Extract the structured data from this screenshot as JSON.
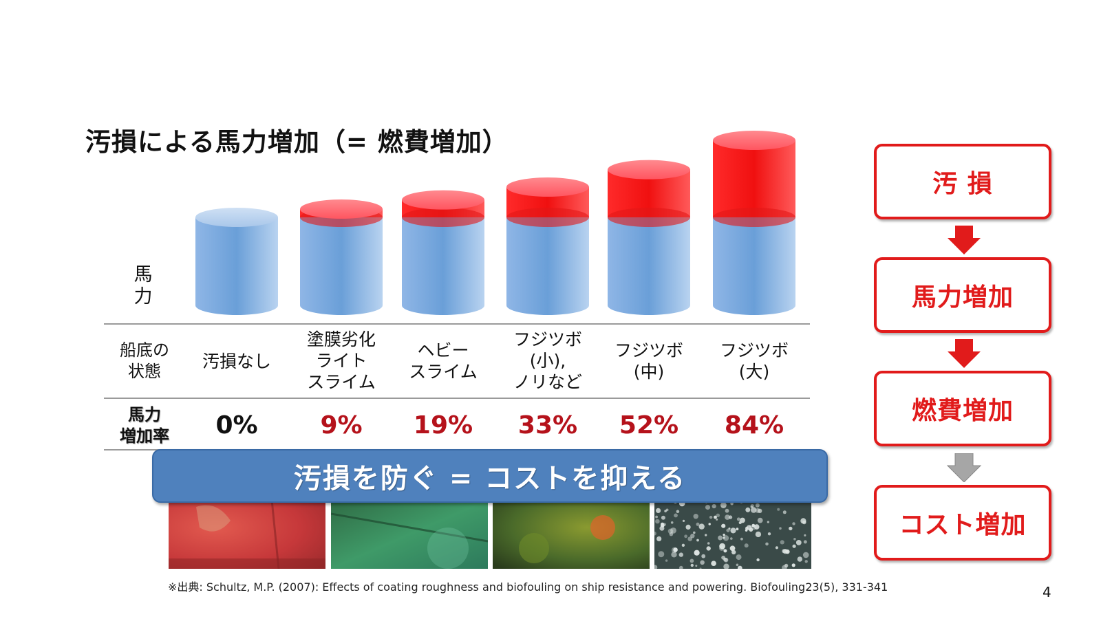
{
  "title": "汚損による馬力増加（= 燃費増加）",
  "y_label": "馬\n力",
  "row_labels": {
    "condition": "船底の\n状態",
    "rate": "馬力\n増加率"
  },
  "columns": [
    {
      "condition": "汚損なし",
      "rate": "0%",
      "rate_value": 0
    },
    {
      "condition": "塗膜劣化\nライト\nスライム",
      "rate": "9%",
      "rate_value": 9
    },
    {
      "condition": "ヘビー\nスライム",
      "rate": "19%",
      "rate_value": 19
    },
    {
      "condition": "フジツボ\n(小),\nノリなど",
      "rate": "33%",
      "rate_value": 33
    },
    {
      "condition": "フジツボ\n(中)",
      "rate": "52%",
      "rate_value": 52
    },
    {
      "condition": "フジツボ\n(大)",
      "rate": "84%",
      "rate_value": 84
    }
  ],
  "banner": "汚損を防ぐ = コストを抑える",
  "flow": [
    "汚 損",
    "馬力増加",
    "燃費増加",
    "コスト増加"
  ],
  "citation": "※出典: Schultz, M.P. (2007): Effects of coating  roughness and biofouling on ship resistance and powering. Biofouling23(5), 331-341",
  "page_number": "4",
  "colors": {
    "baseline_blue": "#6a9fd8",
    "increase_red": "#ff1a1a",
    "rate_zero": "#111111",
    "rate_positive": "#b5121b",
    "flow_red": "#e11b1b",
    "flow_last_arrow": "#a6a6a6",
    "banner": "#4f81bd"
  },
  "photo_descriptions": [
    "red-hull-photo",
    "green-slime-photo",
    "green-fouling-photo",
    "barnacles-photo"
  ]
}
